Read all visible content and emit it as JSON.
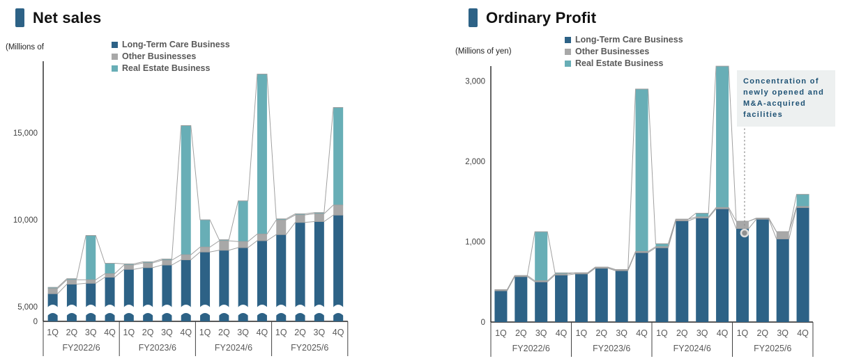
{
  "page": {
    "background": "#ffffff"
  },
  "colors": {
    "title_marker": "#2d6286",
    "long_term_care": "#2d6286",
    "other_businesses": "#a8a8a8",
    "real_estate": "#68aeb6",
    "connector_line": "#a0a0a0",
    "legend_text": "#595959",
    "axis_text": "#404040",
    "annotation_text": "#1d5174",
    "annotation_bg": "#edf0f0"
  },
  "chart_data": [
    {
      "type": "bar",
      "stacked": true,
      "title": "Net sales",
      "unit_label": "(Millions of",
      "legend_position": "top",
      "grid": false,
      "connector_lines": true,
      "categories": [
        "1Q",
        "2Q",
        "3Q",
        "4Q",
        "1Q",
        "2Q",
        "3Q",
        "4Q",
        "1Q",
        "2Q",
        "3Q",
        "4Q",
        "1Q",
        "2Q",
        "3Q",
        "4Q"
      ],
      "group_labels": [
        "FY2022/6",
        "FY2023/6",
        "FY2024/6",
        "FY2025/6"
      ],
      "series": [
        {
          "name": "Long-Term Care Business",
          "color": "#2d6286",
          "values": [
            5750,
            6300,
            6350,
            6700,
            7150,
            7250,
            7400,
            7700,
            8150,
            8250,
            8400,
            8800,
            9150,
            9850,
            9900,
            10270
          ]
        },
        {
          "name": "Other Businesses",
          "color": "#a8a8a8",
          "values": [
            300,
            250,
            200,
            200,
            250,
            270,
            280,
            290,
            280,
            540,
            350,
            380,
            840,
            430,
            450,
            580
          ]
        },
        {
          "name": "Real Estate Business",
          "color": "#68aeb6",
          "values": [
            30,
            30,
            2550,
            600,
            30,
            30,
            40,
            7430,
            1570,
            40,
            2340,
            9200,
            40,
            40,
            40,
            5610
          ]
        }
      ],
      "ylim": [
        0,
        19000
      ],
      "yticks": [
        0,
        5000,
        10000,
        15000
      ],
      "ytick_labels": [
        "0",
        "5,000",
        "10,000",
        "15,000"
      ],
      "axis_break": {
        "below_value": 5000,
        "note": "wavy break between 0 and 5,000"
      }
    },
    {
      "type": "bar",
      "stacked": true,
      "title": "Ordinary Profit",
      "unit_label": "(Millions of yen)",
      "legend_position": "top",
      "grid": false,
      "connector_lines": true,
      "categories": [
        "1Q",
        "2Q",
        "3Q",
        "4Q",
        "1Q",
        "2Q",
        "3Q",
        "4Q",
        "1Q",
        "2Q",
        "3Q",
        "4Q",
        "1Q",
        "2Q",
        "3Q",
        "4Q"
      ],
      "group_labels": [
        "FY2022/6",
        "FY2023/6",
        "FY2024/6",
        "FY2025/6"
      ],
      "series": [
        {
          "name": "Long-Term Care Business",
          "color": "#2d6286",
          "values": [
            390,
            565,
            500,
            585,
            600,
            670,
            640,
            865,
            925,
            1260,
            1295,
            1410,
            1165,
            1280,
            1035,
            1425
          ]
        },
        {
          "name": "Other Businesses",
          "color": "#a8a8a8",
          "values": [
            10,
            10,
            10,
            10,
            10,
            10,
            10,
            10,
            10,
            20,
            10,
            15,
            90,
            10,
            90,
            10
          ]
        },
        {
          "name": "Real Estate Business",
          "color": "#68aeb6",
          "values": [
            0,
            0,
            615,
            15,
            0,
            0,
            0,
            2025,
            40,
            0,
            50,
            1760,
            0,
            0,
            0,
            155
          ]
        }
      ],
      "ylim": [
        0,
        3190
      ],
      "yticks": [
        0,
        1000,
        2000,
        3000
      ],
      "ytick_labels": [
        "0",
        "1,000",
        "2,000",
        "3,000"
      ],
      "annotation": {
        "text": "Concentration of\nnewly opened and\nM&A-acquired\nfacilities",
        "target_category_index": 12,
        "target_category": "1Q FY2025/6",
        "marker": "circle"
      }
    }
  ]
}
